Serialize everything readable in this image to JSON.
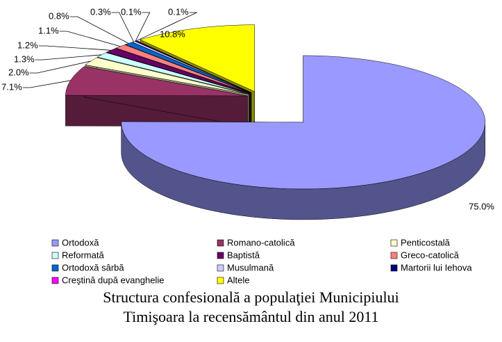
{
  "chart_data": {
    "type": "pie",
    "title": "Structura confesională a populaţiei Municipiului Timişoara la recensământul din anul 2011",
    "categories": [
      "Ortodoxă",
      "Romano-catolică",
      "Penticostală",
      "Reformată",
      "Baptistă",
      "Greco-catolică",
      "Ortodoxă sârbă",
      "Musulmană",
      "Martorii lui Iehova",
      "Creştină după evanghelie",
      "Altele"
    ],
    "values": [
      75.0,
      7.1,
      2.0,
      1.3,
      1.2,
      1.1,
      0.8,
      0.3,
      0.1,
      0.1,
      10.8
    ],
    "value_labels": [
      "75.0%",
      "7.1%",
      "2.0%",
      "1.3%",
      "1.2%",
      "1.1%",
      "0.8%",
      "0.3%",
      "0.1%",
      "0.1%",
      "10.8%"
    ],
    "colors": [
      "#9999ff",
      "#993366",
      "#ffffcc",
      "#ccffff",
      "#660066",
      "#ff8080",
      "#0066cc",
      "#ccccff",
      "#000080",
      "#ff00ff",
      "#ffff00"
    ],
    "legend": "bottom"
  }
}
